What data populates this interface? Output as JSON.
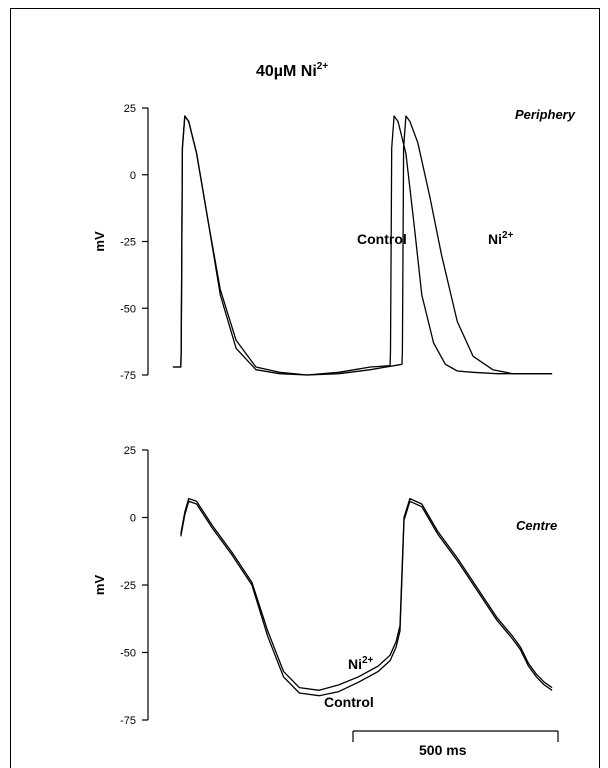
{
  "figure": {
    "title": "40µM Ni",
    "title_sup": "2+"
  },
  "chart_data": [
    {
      "type": "line",
      "panel": "top",
      "label": "Periphery",
      "ylabel": "mV",
      "ylim": [
        -75,
        25
      ],
      "yticks": [
        "25",
        "0",
        "-25",
        "-50",
        "-75"
      ],
      "xunit": "ms",
      "xlim": [
        -40,
        960
      ],
      "series": [
        {
          "name": "Control",
          "x": [
            -20,
            0,
            1,
            4,
            10,
            20,
            40,
            70,
            100,
            140,
            190,
            250,
            320,
            400,
            480,
            530,
            531,
            534,
            540,
            550,
            570,
            590,
            610,
            640,
            670,
            700,
            740,
            800,
            880,
            940
          ],
          "y": [
            -72,
            -72,
            -66,
            10,
            22,
            20,
            8,
            -18,
            -45,
            -65,
            -73,
            -74.5,
            -75,
            -74,
            -72,
            -71.5,
            -66,
            10,
            22,
            20,
            8,
            -18,
            -45,
            -63,
            -71,
            -73.5,
            -74,
            -74.5,
            -74.5,
            -74.5
          ]
        },
        {
          "name": "Ni",
          "x": [
            -20,
            0,
            1,
            4,
            10,
            20,
            40,
            70,
            100,
            140,
            190,
            250,
            320,
            400,
            480,
            560,
            561,
            564,
            570,
            580,
            600,
            630,
            660,
            700,
            740,
            790,
            840,
            900,
            940
          ],
          "y": [
            -72,
            -72,
            -66,
            10,
            22,
            20,
            8,
            -18,
            -43,
            -62,
            -72,
            -74,
            -75,
            -74.5,
            -73,
            -71,
            -66,
            10,
            22,
            20,
            12,
            -8,
            -30,
            -55,
            -68,
            -73,
            -74.5,
            -74.5,
            -74.5
          ]
        }
      ]
    },
    {
      "type": "line",
      "panel": "bottom",
      "label": "Centre",
      "ylabel": "mV",
      "ylim": [
        -75,
        25
      ],
      "yticks": [
        "25",
        "0",
        "-25",
        "-50",
        "-75"
      ],
      "xunit": "ms",
      "xlim": [
        -40,
        960
      ],
      "series": [
        {
          "name": "Ni",
          "x": [
            0,
            10,
            20,
            40,
            80,
            130,
            180,
            220,
            260,
            300,
            350,
            400,
            450,
            500,
            530,
            545,
            555,
            565,
            580,
            610,
            650,
            700,
            750,
            800,
            840,
            860,
            880,
            900,
            920,
            940
          ],
          "y": [
            -6,
            2,
            7,
            6,
            -3,
            -13,
            -24,
            -42,
            -57,
            -63,
            -64,
            -62,
            -59,
            -55,
            -51,
            -46,
            -40,
            0,
            7,
            5,
            -5,
            -15,
            -26,
            -37,
            -44,
            -48,
            -54,
            -58,
            -61,
            -63
          ]
        },
        {
          "name": "Control",
          "x": [
            0,
            10,
            20,
            40,
            80,
            130,
            180,
            220,
            260,
            300,
            350,
            400,
            450,
            500,
            530,
            545,
            555,
            565,
            580,
            610,
            650,
            700,
            750,
            800,
            840,
            860,
            880,
            900,
            920,
            940
          ],
          "y": [
            -7,
            1,
            6,
            5,
            -4,
            -14,
            -25,
            -44,
            -59,
            -65,
            -66,
            -64.5,
            -61,
            -57,
            -53,
            -48,
            -42,
            -1,
            6,
            4,
            -6,
            -16,
            -27,
            -38,
            -45,
            -49,
            -55,
            -59,
            -62,
            -64
          ]
        }
      ]
    }
  ],
  "annotations": {
    "top_control_label": "Control",
    "top_ni_label": "Ni",
    "top_ni_sup": "2+",
    "bottom_ni_label": "Ni",
    "bottom_ni_sup": "2+",
    "bottom_control_label": "Control"
  },
  "scale_bar": {
    "label": "500 ms",
    "duration_ms": 500
  },
  "colors": {
    "line": "#000000",
    "background": "#ffffff"
  }
}
